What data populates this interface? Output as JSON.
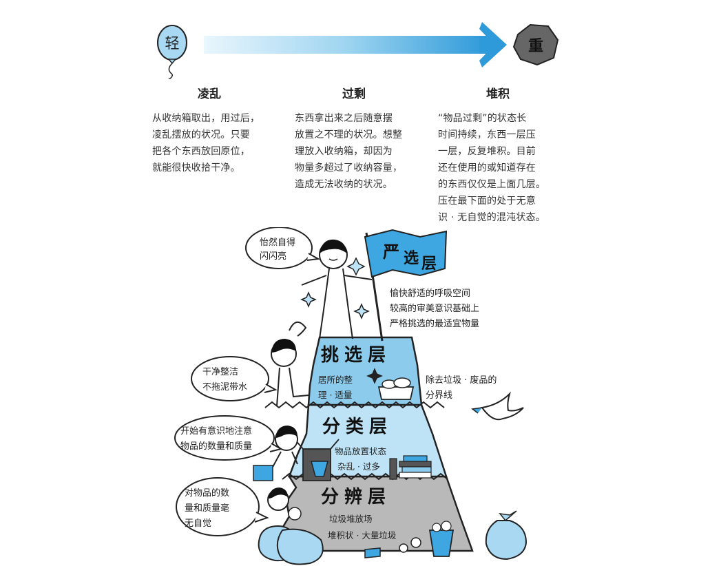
{
  "scale": {
    "light_label": "轻",
    "heavy_label": "重"
  },
  "columns": [
    {
      "title": "凌乱",
      "lines": [
        "从收纳箱取出，用过后，",
        "凌乱摆放的状况。只要",
        "把各个东西放回原位，",
        "就能很快收拾干净。"
      ]
    },
    {
      "title": "过剩",
      "lines": [
        "东西拿出来之后随意摆",
        "放置之不理的状况。想整",
        "理放入收纳箱，却因为",
        "物量多超过了收纳容量，",
        "造成无法收纳的状况。"
      ]
    },
    {
      "title": "堆积",
      "lines": [
        "“物品过剩”的状态长",
        "时间持续，东西一层压",
        "一层，反复堆积。目前",
        "还在使用的或知道存在",
        "的东西仅仅是上面几层。",
        "压在最下面的处于无意",
        "识 · 无自觉的混沌状态。"
      ]
    }
  ],
  "flag": {
    "label_1": "严",
    "label_2": "选",
    "label_3": "层"
  },
  "summit_bubble": [
    "怡然自得",
    "闪闪亮"
  ],
  "summit_notes": [
    "愉快舒适的呼吸空间",
    "较高的审美意识基础上",
    "严格挑选的最适宜物量"
  ],
  "layers": {
    "select": {
      "title": "挑选层",
      "note_lines": [
        "居所的整",
        "理 · 适量"
      ]
    },
    "sort": {
      "title": "分类层",
      "note_lines": [
        "物品放置状态",
        "杂乱 · 过多"
      ]
    },
    "discern": {
      "title": "分辨层",
      "note_lines": [
        "垃圾堆放场",
        "堆积状 · 大量垃圾"
      ]
    }
  },
  "side_notes": {
    "boundary": [
      "除去垃圾 · 废品的",
      "分界线"
    ],
    "bubble_clean": [
      "干净整洁",
      "不拖泥带水"
    ],
    "bubble_aware": [
      "开始有意识地注意",
      "物品的数量和质量"
    ],
    "bubble_unaware": [
      "对物品的数",
      "量和质量毫",
      "无自觉"
    ]
  },
  "colors": {
    "accent_blue": "#3ea6e0",
    "light_blue": "#bfe3f6",
    "mid_blue": "#8ccbeb",
    "gray": "#b9b9b9",
    "rock": "#666666"
  }
}
